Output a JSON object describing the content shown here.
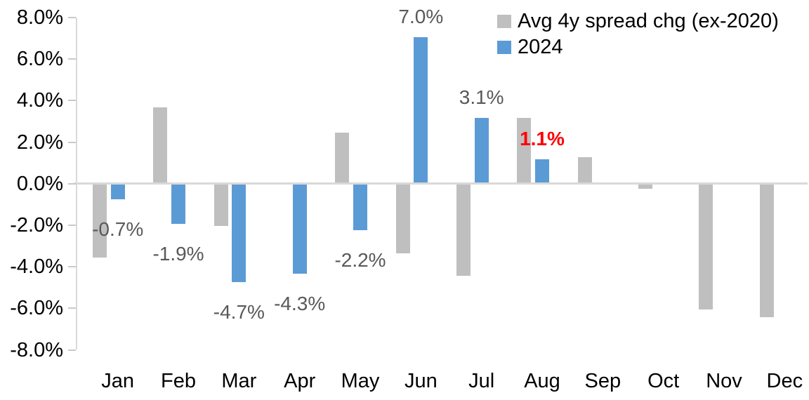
{
  "chart_data": {
    "type": "bar",
    "title": "",
    "xlabel": "",
    "ylabel": "",
    "categories": [
      "Jan",
      "Feb",
      "Mar",
      "Apr",
      "May",
      "Jun",
      "Jul",
      "Aug",
      "Sep",
      "Oct",
      "Nov",
      "Dec"
    ],
    "series": [
      {
        "name": "Avg 4y spread chg (ex-2020)",
        "color": "#bfbfbf",
        "values": [
          -3.5,
          3.6,
          -2.0,
          0.0,
          2.4,
          -3.3,
          -4.4,
          3.1,
          1.2,
          -0.2,
          -6.0,
          -6.4
        ]
      },
      {
        "name": "2024",
        "color": "#5b9bd5",
        "values": [
          -0.7,
          -1.9,
          -4.7,
          -4.3,
          -2.2,
          7.0,
          3.1,
          1.1,
          null,
          null,
          null,
          null
        ],
        "labels": [
          "-0.7%",
          "-1.9%",
          "-4.7%",
          "-4.3%",
          "-2.2%",
          "7.0%",
          "3.1%",
          "1.1%",
          "",
          "",
          "",
          ""
        ],
        "label_highlight": {
          "index": 7,
          "color": "#ff0000",
          "bold": true
        }
      }
    ],
    "ylim": [
      -8,
      8
    ],
    "ytick_step": 2,
    "yticks": [
      "8.0%",
      "6.0%",
      "4.0%",
      "2.0%",
      "0.0%",
      "-2.0%",
      "-4.0%",
      "-6.0%",
      "-8.0%"
    ],
    "grid": false,
    "legend_position": "top-right"
  },
  "colors": {
    "background": "#ffffff",
    "axis_line": "#d9d9d9",
    "tick_mark": "#c9c9c9",
    "data_label": "#595959",
    "highlight_label": "#ff0000",
    "axis_text": "#000000",
    "bar_gray": "#bfbfbf",
    "bar_blue": "#5b9bd5"
  }
}
